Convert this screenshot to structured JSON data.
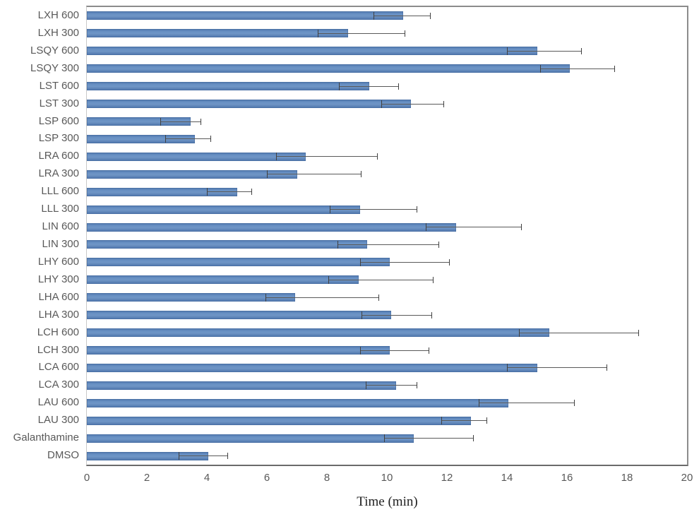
{
  "figure": {
    "background_color": "#ffffff"
  },
  "chart_data": {
    "type": "bar",
    "orientation": "horizontal",
    "title": "",
    "xlabel": "Time (min)",
    "ylabel": "",
    "xlim": [
      0,
      20
    ],
    "x_ticks": [
      0,
      2,
      4,
      6,
      8,
      10,
      12,
      14,
      16,
      18,
      20
    ],
    "grid": false,
    "legend": "none",
    "bar_color": "#5b82ba",
    "error_bar_color": "#595959",
    "categories": [
      "LXH 600",
      "LXH 300",
      "LSQY 600",
      "LSQY 300",
      "LST 600",
      "LST 300",
      "LSP 600",
      "LSP 300",
      "LRA 600",
      "LRA 300",
      "LLL 600",
      "LLL 300",
      "LIN 600",
      "LIN 300",
      "LHY 600",
      "LHY 300",
      "LHA 600",
      "LHA 300",
      "LCH 600",
      "LCH 300",
      "LCA 600",
      "LCA 300",
      "LAU 600",
      "LAU 300",
      "Galanthamine",
      "DMSO"
    ],
    "series": [
      {
        "name": "Time (min)",
        "values": [
          10.55,
          8.7,
          15.0,
          16.1,
          9.4,
          10.8,
          3.45,
          3.6,
          7.3,
          7.0,
          5.0,
          9.1,
          12.3,
          9.35,
          10.1,
          9.05,
          6.95,
          10.15,
          15.4,
          10.1,
          15.0,
          10.3,
          14.05,
          12.8,
          10.9,
          4.05
        ],
        "error_plus": [
          0.9,
          1.9,
          1.5,
          1.5,
          1.0,
          1.1,
          0.35,
          0.55,
          2.4,
          2.15,
          0.5,
          1.9,
          2.2,
          2.4,
          2.0,
          2.5,
          2.8,
          1.35,
          3.0,
          1.3,
          2.35,
          0.7,
          2.2,
          0.55,
          2.0,
          0.65
        ],
        "error_minus": [
          1.0,
          1.0,
          1.0,
          1.0,
          1.0,
          1.0,
          1.0,
          1.0,
          1.0,
          1.0,
          1.0,
          1.0,
          1.0,
          1.0,
          1.0,
          1.0,
          1.0,
          1.0,
          1.0,
          1.0,
          1.0,
          1.0,
          1.0,
          1.0,
          1.0,
          1.0
        ]
      }
    ]
  }
}
